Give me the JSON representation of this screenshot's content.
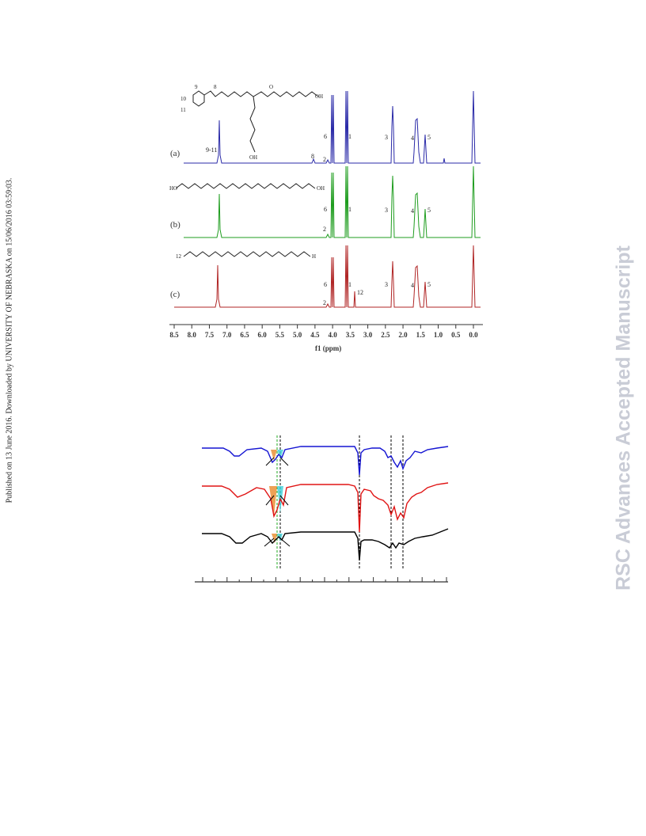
{
  "side_note": "Published on 13 June 2016. Downloaded by UNIVERSITY OF NEBRASKA on 15/06/2016 03:59:03.",
  "watermark": "RSC Advances Accepted Manuscript",
  "nmr_figure": {
    "panels": [
      {
        "label": "(a)",
        "color": "#2a2aa8"
      },
      {
        "label": "(b)",
        "color": "#1f9d1f"
      },
      {
        "label": "(c)",
        "color": "#b02525"
      }
    ],
    "peak_labels": {
      "a": [
        "9-11",
        "8",
        "2",
        "6",
        "1",
        "3",
        "4",
        "5"
      ],
      "b": [
        "2",
        "6",
        "1",
        "3",
        "4",
        "5"
      ],
      "c": [
        "2",
        "6",
        "1",
        "12",
        "3",
        "4",
        "5"
      ]
    },
    "axis_label": "f1 (ppm)",
    "ticks": [
      "8.5",
      "8.0",
      "7.5",
      "7.0",
      "6.5",
      "6.0",
      "5.5",
      "5.0",
      "4.5",
      "4.0",
      "3.5",
      "3.0",
      "2.5",
      "2.0",
      "1.5",
      "1.0",
      "0.5",
      "0.0"
    ]
  },
  "ir_figure": {
    "colors": [
      "#1414d2",
      "#e01414",
      "#000000"
    ],
    "guide_colors": {
      "green": "#22aa22",
      "black": "#000000"
    }
  }
}
